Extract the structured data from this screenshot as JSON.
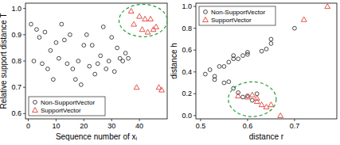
{
  "chart_data": [
    {
      "type": "scatter",
      "x_label": "Sequence number of xᵢ",
      "y_label": "Relative support distance T",
      "xlim": [
        -1,
        50
      ],
      "ylim": [
        0.58,
        1.02
      ],
      "xticks": [
        0,
        10,
        20,
        30,
        40
      ],
      "yticks": [
        {
          "value": 0.6,
          "label": "0.6"
        },
        {
          "value": 0.7,
          "label": "0.7"
        },
        {
          "value": 0.8,
          "label": "0.8"
        },
        {
          "value": 0.9,
          "label": "0.9"
        },
        {
          "value": 1.0,
          "label": "1.0"
        }
      ],
      "legend": "bottom-left",
      "series": [
        {
          "name": "Non-SupportVector",
          "color": "#000000",
          "marker": "circle",
          "x": [
            1,
            2,
            3,
            4,
            5,
            6,
            7,
            8,
            9,
            10,
            11,
            12,
            13,
            14,
            15,
            16,
            17,
            18,
            19,
            20,
            21,
            22,
            23,
            24,
            25,
            26,
            27,
            28,
            29,
            30,
            31,
            32,
            33,
            34,
            35,
            36
          ],
          "values": [
            0.94,
            0.8,
            0.92,
            0.89,
            0.79,
            0.91,
            0.77,
            0.84,
            0.73,
            0.87,
            0.81,
            0.94,
            0.88,
            0.79,
            0.9,
            0.77,
            0.73,
            0.8,
            0.71,
            0.86,
            0.9,
            0.78,
            0.86,
            0.75,
            0.79,
            0.82,
            0.93,
            0.77,
            0.8,
            0.89,
            0.76,
            0.85,
            0.81,
            0.8,
            0.83,
            0.81
          ]
        },
        {
          "name": "SupportVector",
          "color": "#e0403a",
          "marker": "triangle",
          "x": [
            37,
            38,
            39,
            40,
            41,
            42,
            43,
            44,
            45,
            46,
            47,
            48
          ],
          "values": [
            0.99,
            0.94,
            0.7,
            0.97,
            0.92,
            0.96,
            0.91,
            0.96,
            0.92,
            0.93,
            0.7,
            0.69
          ]
        }
      ]
    },
    {
      "type": "scatter",
      "x_label": "distance r",
      "y_label": "distance h",
      "xlim": [
        0.49,
        0.79
      ],
      "ylim": [
        -0.03,
        1.03
      ],
      "xticks": [
        0.5,
        0.6,
        0.7
      ],
      "yticks": [
        {
          "value": 0,
          "label": "0.0"
        },
        0.2,
        0.4,
        0.6,
        0.8,
        {
          "value": 1.0,
          "label": "1.0"
        }
      ],
      "legend": "top-left",
      "series": [
        {
          "name": "Non-SupportVector",
          "color": "#000000",
          "marker": "circle",
          "x": [
            0.51,
            0.52,
            0.53,
            0.53,
            0.54,
            0.55,
            0.55,
            0.56,
            0.56,
            0.57,
            0.57,
            0.58,
            0.58,
            0.59,
            0.6,
            0.6,
            0.61,
            0.62,
            0.63,
            0.64,
            0.65,
            0.65,
            0.7,
            0.6,
            0.57,
            0.59
          ],
          "values": [
            0.38,
            0.42,
            0.36,
            0.33,
            0.45,
            0.45,
            0.3,
            0.49,
            0.31,
            0.52,
            0.25,
            0.52,
            0.21,
            0.55,
            0.18,
            0.58,
            0.14,
            0.2,
            0.59,
            0.61,
            0.7,
            0.66,
            0.8,
            0.56,
            0.55,
            0.17
          ]
        },
        {
          "name": "SupportVector",
          "color": "#e0403a",
          "marker": "triangle",
          "x": [
            0.58,
            0.6,
            0.61,
            0.62,
            0.63,
            0.64,
            0.65,
            0.67,
            0.72,
            0.77,
            0.62
          ],
          "values": [
            0.18,
            0.17,
            0.19,
            0.13,
            0.1,
            0.08,
            0.1,
            0.0,
            0.88,
            1.0,
            0.16
          ]
        }
      ]
    }
  ]
}
